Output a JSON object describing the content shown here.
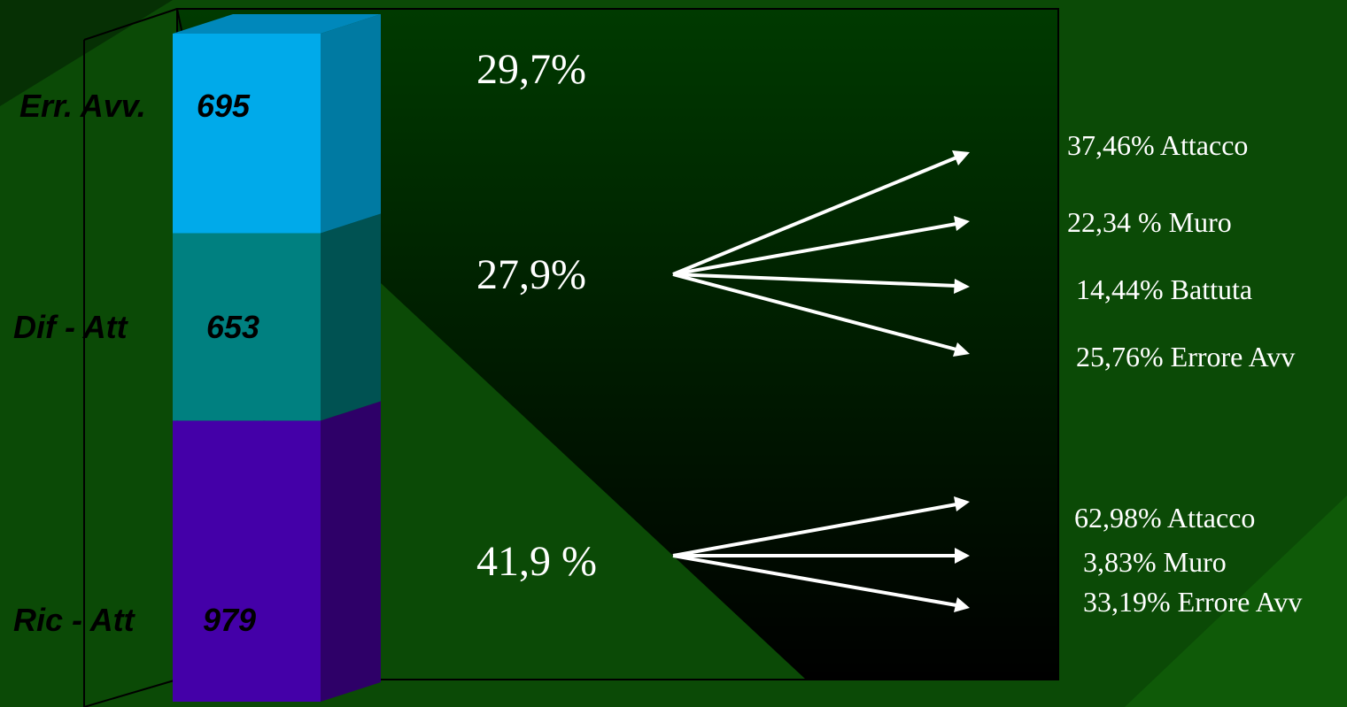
{
  "colors": {
    "background": "#0b4a06",
    "panel_top": "#003a00",
    "panel_bottom": "#000000",
    "frame": "#000000",
    "arrow": "#ffffff",
    "label_text": "#ffffff",
    "segment_text": "#000000"
  },
  "chart_data": {
    "type": "bar",
    "stacked": true,
    "orientation": "vertical",
    "three_d": true,
    "categories": [
      "Ric - Att",
      "Dif - Att",
      "Err. Avv."
    ],
    "values": [
      979,
      653,
      695
    ],
    "value_labels": [
      "979",
      "653",
      "695"
    ],
    "segment_colors": [
      "#4400a8",
      "#008080",
      "#00aaea"
    ],
    "segment_side_colors": [
      "#2e0068",
      "#005252",
      "#007aa2"
    ],
    "segment_top_colors": [
      "#3a0090",
      "#006a6a",
      "#0088bb"
    ],
    "percent_labels": [
      "41,9 %",
      "27,9%",
      "29,7%"
    ],
    "breakdowns": [
      {
        "category": "Ric - Att",
        "items": [
          {
            "label": "62,98% Attacco",
            "percent": 62.98
          },
          {
            "label": "3,83% Muro",
            "percent": 3.83
          },
          {
            "label": "33,19% Errore Avv",
            "percent": 33.19
          }
        ]
      },
      {
        "category": "Dif - Att",
        "items": [
          {
            "label": "37,46% Attacco",
            "percent": 37.46
          },
          {
            "label": "22,34 % Muro",
            "percent": 22.34
          },
          {
            "label": "14,44% Battuta",
            "percent": 14.44
          },
          {
            "label": "25,76% Errore Avv",
            "percent": 25.76
          }
        ]
      }
    ],
    "title": "",
    "xlabel": "",
    "ylabel": "",
    "grid": false,
    "legend": "none"
  }
}
